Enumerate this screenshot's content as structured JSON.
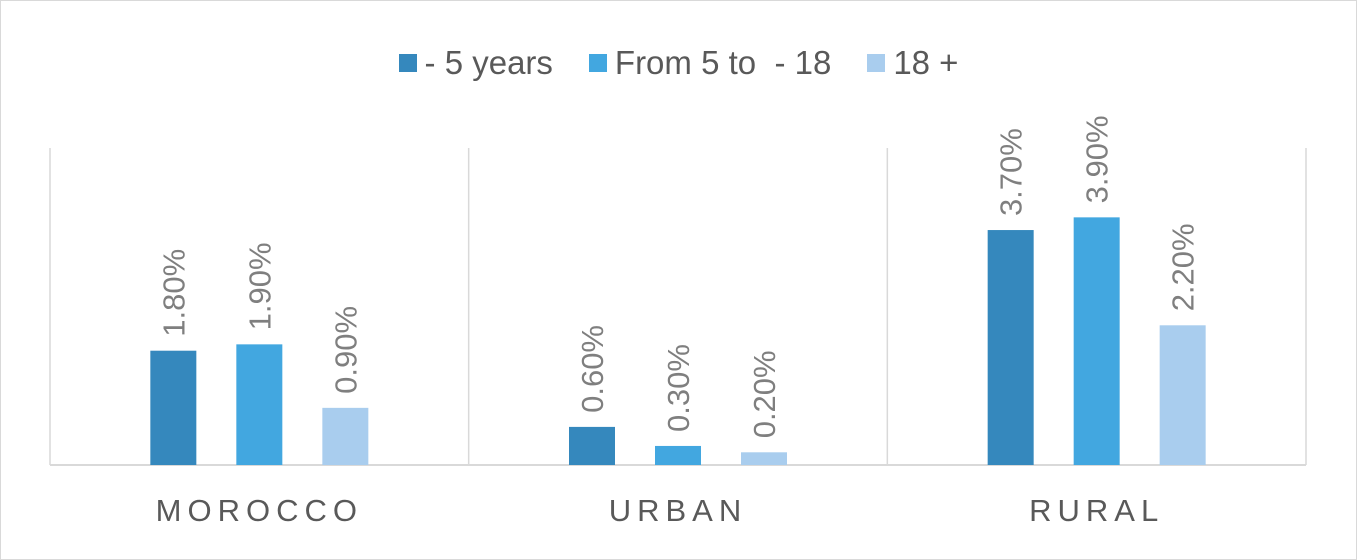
{
  "chart_data": {
    "type": "bar",
    "categories": [
      "MOROCCO",
      "URBAN",
      "RURAL"
    ],
    "series": [
      {
        "name": "- 5 years",
        "color": "#3588bd",
        "values": [
          1.8,
          0.6,
          3.7
        ],
        "labels": [
          "1.80%",
          "0.60%",
          "3.70%"
        ]
      },
      {
        "name": "From 5 to  - 18",
        "color": "#42a7e0",
        "values": [
          1.9,
          0.3,
          3.9
        ],
        "labels": [
          "1.90%",
          "0.30%",
          "3.90%"
        ]
      },
      {
        "name": "18 +",
        "color": "#a9cdee",
        "values": [
          0.9,
          0.2,
          2.2
        ],
        "labels": [
          "0.90%",
          "0.20%",
          "2.20%"
        ]
      }
    ],
    "value_unit": "%",
    "legend_position": "top",
    "grid": "vertical-category-separators",
    "ylim": [
      0,
      5
    ]
  }
}
